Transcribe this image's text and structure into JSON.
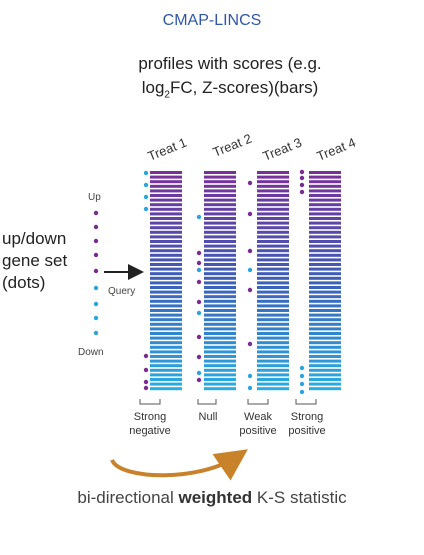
{
  "title": "CMAP-LINCS",
  "subtitle": {
    "line1": "profiles with scores (e.g.",
    "log_prefix": "log",
    "log_sub": "2",
    "line2_rest": "FC, Z-scores)(bars)"
  },
  "left_label": [
    "up/down",
    "gene set",
    "(dots)"
  ],
  "gene_set": {
    "up_label": "Up",
    "down_label": "Down",
    "query_label": "Query"
  },
  "treatments": [
    "Treat 1",
    "Treat 2",
    "Treat 3",
    "Treat 4"
  ],
  "outcomes": [
    [
      "Strong",
      "negative"
    ],
    [
      "Null"
    ],
    [
      "Weak",
      "positive"
    ],
    [
      "Strong",
      "positive"
    ]
  ],
  "footer": {
    "before": "bi-directional ",
    "bold": "weighted",
    "after": " K-S statistic"
  },
  "colors": {
    "title": "#2f57a6",
    "up_dot": "#7a2a90",
    "down_dot": "#2aa6dc",
    "bar_top": "#7c2e98",
    "bar_mid": "#3a5fb8",
    "bar_bottom": "#28b0e4",
    "arrow": "#c8832a"
  }
}
